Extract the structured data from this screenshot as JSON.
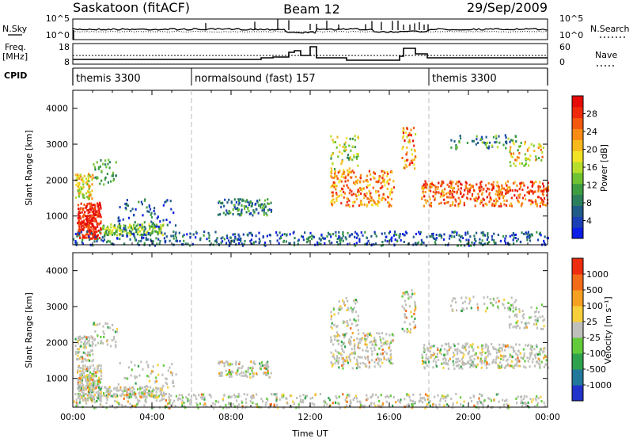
{
  "header": {
    "left": "Saskatoon (fitACF)",
    "center": "Beam 12",
    "right": "29/Sep/2009"
  },
  "sky": {
    "label": "N.Sky",
    "ticks_left": [
      "10^5",
      "10^0"
    ],
    "ticks_right": [
      "10^5",
      "10^0"
    ],
    "right_label": "N.Search"
  },
  "freq": {
    "label_line1": "Freq.",
    "label_line2": "[MHz]",
    "ticks_left": [
      "18",
      "8"
    ],
    "ticks_right": [
      "60",
      "0"
    ],
    "right_label": "Nave"
  },
  "cpid": {
    "label": "CPID",
    "segments": [
      {
        "name": "themis 3300",
        "start_hour": 0,
        "end_hour": 6
      },
      {
        "name": "normalsound (fast) 157",
        "start_hour": 6,
        "end_hour": 18
      },
      {
        "name": "themis 3300",
        "start_hour": 18,
        "end_hour": 24
      }
    ]
  },
  "chart_data": [
    {
      "type": "heatmap",
      "title": "",
      "xlabel": "",
      "ylabel": "Slant Range [km]",
      "xlim": [
        0,
        24
      ],
      "ylim": [
        200,
        4500
      ],
      "yticks": [
        "1000",
        "2000",
        "3000",
        "4000"
      ],
      "colorbar": {
        "label": "Power [dB]",
        "range": [
          0,
          32
        ],
        "ticks": [
          "4",
          "8",
          "12",
          "16",
          "20",
          "24",
          "28"
        ],
        "colors": [
          "#0b1de6",
          "#1b3fb4",
          "#215c88",
          "#2c7f5c",
          "#3d9d43",
          "#6fc232",
          "#b8de2c",
          "#f2e226",
          "#f8b91c",
          "#f78b14",
          "#f45a0f",
          "#ef2a0b",
          "#e60a08"
        ]
      }
    },
    {
      "type": "heatmap",
      "title": "",
      "xlabel": "Time UT",
      "ylabel": "Slant Range [km]",
      "xlim": [
        0,
        24
      ],
      "ylim": [
        200,
        4500
      ],
      "yticks": [
        "1000",
        "2000",
        "3000",
        "4000"
      ],
      "xticks": [
        "00:00",
        "04:00",
        "08:00",
        "12:00",
        "16:00",
        "20:00",
        "00:00"
      ],
      "colorbar": {
        "label": "Velocity [m s⁻¹]",
        "ticks": [
          "1000",
          "500",
          "100",
          "25",
          "-25",
          "-100",
          "-500",
          "-1000"
        ],
        "colors": [
          "#2233c9",
          "#21789a",
          "#2fa24d",
          "#63cb3b",
          "#bfbfbb",
          "#f7cf3a",
          "#f5a021",
          "#f36a18",
          "#ee2c10"
        ]
      }
    }
  ]
}
